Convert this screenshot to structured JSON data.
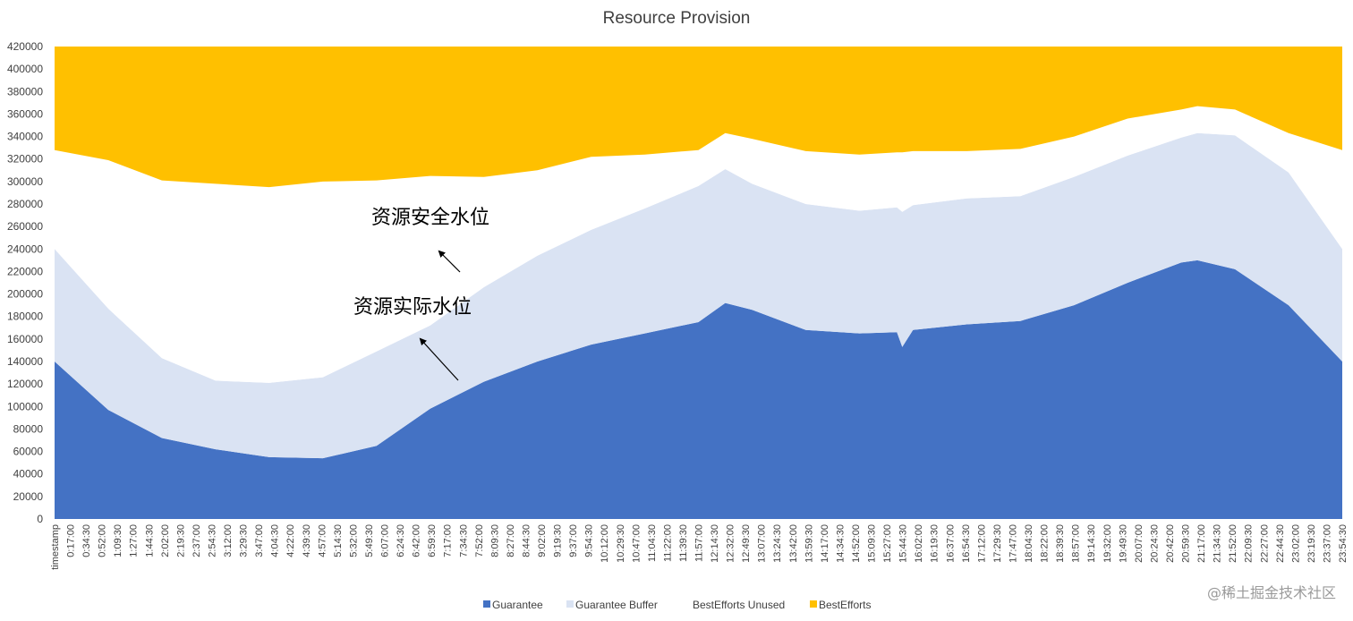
{
  "chart_data": {
    "type": "area",
    "stacked": true,
    "title": "Resource Provision",
    "ylim": [
      0,
      420000
    ],
    "yticks": [
      0,
      20000,
      40000,
      60000,
      80000,
      100000,
      120000,
      140000,
      160000,
      180000,
      200000,
      220000,
      240000,
      260000,
      280000,
      300000,
      320000,
      340000,
      360000,
      380000,
      400000,
      420000
    ],
    "x_labels": [
      "timestamp",
      "0:17:00",
      "0:34:30",
      "0:52:00",
      "1:09:30",
      "1:27:00",
      "1:44:30",
      "2:02:00",
      "2:19:30",
      "2:37:00",
      "2:54:30",
      "3:12:00",
      "3:29:30",
      "3:47:00",
      "4:04:30",
      "4:22:00",
      "4:39:30",
      "4:57:00",
      "5:14:30",
      "5:32:00",
      "5:49:30",
      "6:07:00",
      "6:24:30",
      "6:42:00",
      "6:59:30",
      "7:17:00",
      "7:34:30",
      "7:52:00",
      "8:09:30",
      "8:27:00",
      "8:44:30",
      "9:02:00",
      "9:19:30",
      "9:37:00",
      "9:54:30",
      "10:12:00",
      "10:29:30",
      "10:47:00",
      "11:04:30",
      "11:22:00",
      "11:39:30",
      "11:57:00",
      "12:14:30",
      "12:32:00",
      "12:49:30",
      "13:07:00",
      "13:24:30",
      "13:42:00",
      "13:59:30",
      "14:17:00",
      "14:34:30",
      "14:52:00",
      "15:09:30",
      "15:27:00",
      "15:44:30",
      "16:02:00",
      "16:19:30",
      "16:37:00",
      "16:54:30",
      "17:12:00",
      "17:29:30",
      "17:47:00",
      "18:04:30",
      "18:22:00",
      "18:39:30",
      "18:57:00",
      "19:14:30",
      "19:32:00",
      "19:49:30",
      "20:07:00",
      "20:24:30",
      "20:42:00",
      "20:59:30",
      "21:17:00",
      "21:34:30",
      "21:52:00",
      "22:09:30",
      "22:27:00",
      "22:44:30",
      "23:02:00",
      "23:19:30",
      "23:37:00",
      "23:54:30"
    ],
    "x_hours": [
      0,
      1,
      2,
      3,
      4,
      5,
      6,
      7,
      8,
      9,
      10,
      11,
      12,
      12.5,
      13,
      14,
      15,
      15.7,
      15.8,
      16,
      17,
      18,
      19,
      20,
      21,
      21.3,
      22,
      23,
      24
    ],
    "series": [
      {
        "name": "Guarantee",
        "color": "#4472c4",
        "values": [
          140000,
          97000,
          72000,
          62000,
          55000,
          54000,
          65000,
          98000,
          122000,
          140000,
          155000,
          165000,
          175000,
          192000,
          186000,
          168000,
          165000,
          166000,
          153000,
          168000,
          173000,
          176000,
          190000,
          210000,
          228000,
          230000,
          222000,
          190000,
          140000
        ]
      },
      {
        "name": "Guarantee Buffer",
        "color": "#dae3f3",
        "values": [
          100000,
          90000,
          71000,
          61000,
          66000,
          72000,
          84000,
          74000,
          84000,
          94000,
          102000,
          111000,
          121000,
          119000,
          112000,
          112000,
          109000,
          111000,
          120000,
          111000,
          112000,
          111000,
          114000,
          113000,
          111000,
          113000,
          119000,
          118000,
          100000
        ]
      },
      {
        "name": "BestEfforts Unused",
        "color": "#ffffff",
        "values": [
          88000,
          132000,
          158000,
          175000,
          174000,
          174000,
          152000,
          133000,
          98000,
          76000,
          65000,
          48000,
          32000,
          32000,
          40000,
          47000,
          50000,
          49000,
          53000,
          48000,
          42000,
          42000,
          36000,
          33000,
          25000,
          24000,
          23000,
          35000,
          88000
        ]
      },
      {
        "name": "BestEfforts",
        "color": "#ffc000",
        "values": [
          92000,
          101000,
          119000,
          122000,
          125000,
          120000,
          119000,
          115000,
          116000,
          110000,
          98000,
          96000,
          92000,
          77000,
          82000,
          93000,
          96000,
          94000,
          94000,
          93000,
          93000,
          91000,
          80000,
          64000,
          56000,
          53000,
          56000,
          77000,
          92000
        ]
      }
    ],
    "annotations": [
      {
        "text": "资源安全水位"
      },
      {
        "text": "资源实际水位"
      }
    ],
    "legend_position": "bottom",
    "grid": false
  },
  "watermark": "@稀土掘金技术社区"
}
